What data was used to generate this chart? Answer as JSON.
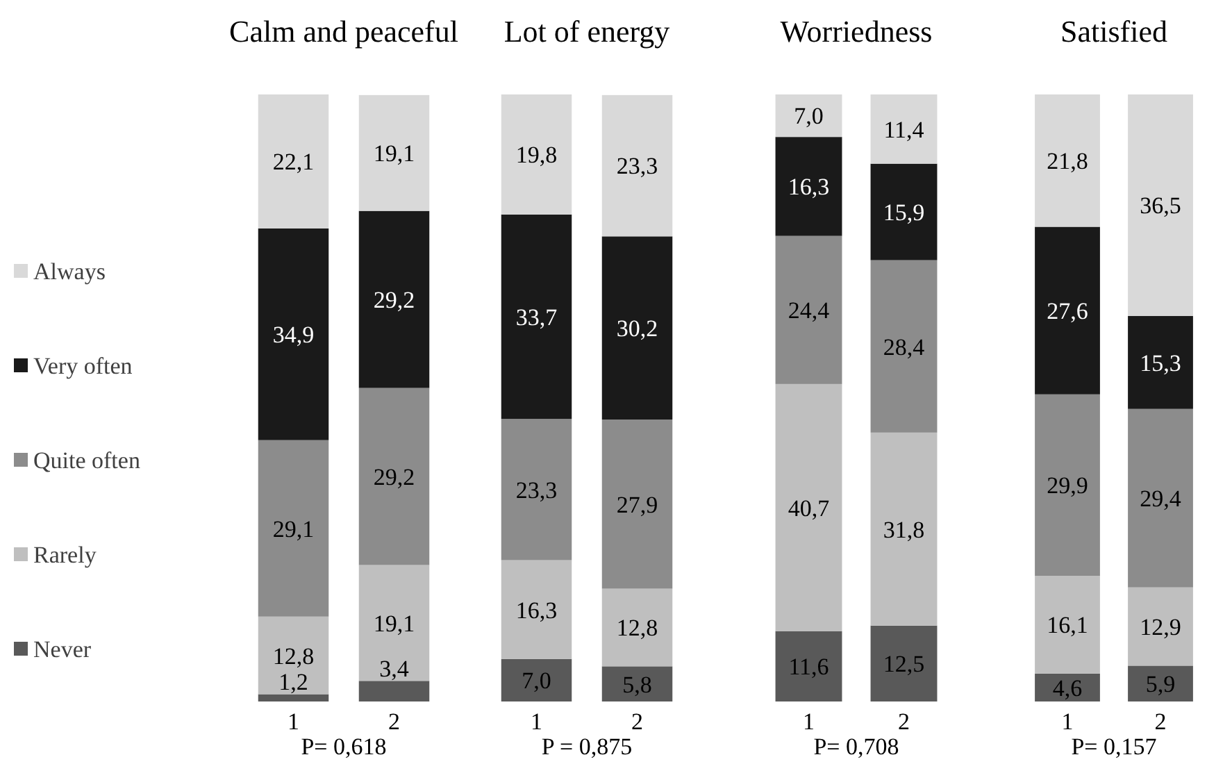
{
  "chart_data": [
    {
      "type": "bar",
      "stacked": true,
      "title": "Calm and peaceful",
      "categories": [
        "1",
        "2"
      ],
      "legend": "left",
      "annotations": [
        "P=  0,618"
      ],
      "series": [
        {
          "name": "Never",
          "color": "#595959",
          "values": [
            1.2,
            3.4
          ],
          "value_labels": [
            "1,2",
            "3,4"
          ]
        },
        {
          "name": "Rarely",
          "color": "#bfbfbf",
          "values": [
            12.8,
            19.1
          ],
          "value_labels": [
            "12,8",
            "19,1"
          ]
        },
        {
          "name": "Quite often",
          "color": "#8c8c8c",
          "values": [
            29.1,
            29.2
          ],
          "value_labels": [
            "29,1",
            "29,2"
          ]
        },
        {
          "name": "Very often",
          "color": "#1a1a1a",
          "values": [
            34.9,
            29.2
          ],
          "value_labels": [
            "34,9",
            "29,2"
          ]
        },
        {
          "name": "Always",
          "color": "#d9d9d9",
          "values": [
            22.1,
            19.1
          ],
          "value_labels": [
            "22,1",
            "19,1"
          ]
        }
      ]
    },
    {
      "type": "bar",
      "stacked": true,
      "title": "Lot of energy",
      "categories": [
        "1",
        "2"
      ],
      "annotations": [
        "P = 0,875"
      ],
      "series": [
        {
          "color": "#595959",
          "values": [
            7.0,
            5.8
          ],
          "value_labels": [
            "7,0",
            "5,8"
          ]
        },
        {
          "color": "#bfbfbf",
          "values": [
            16.3,
            12.8
          ],
          "value_labels": [
            "16,3",
            "12,8"
          ]
        },
        {
          "color": "#8c8c8c",
          "values": [
            23.3,
            27.9
          ],
          "value_labels": [
            "23,3",
            "27,9"
          ]
        },
        {
          "color": "#1a1a1a",
          "values": [
            33.7,
            30.2
          ],
          "value_labels": [
            "33,7",
            "30,2"
          ]
        },
        {
          "color": "#d9d9d9",
          "values": [
            19.8,
            23.3
          ],
          "value_labels": [
            "19,8",
            "23,3"
          ]
        }
      ]
    },
    {
      "type": "bar",
      "stacked": true,
      "title": "Worriedness",
      "categories": [
        "1",
        "2"
      ],
      "annotations": [
        "P= 0,708"
      ],
      "series": [
        {
          "color": "#595959",
          "values": [
            11.6,
            12.5
          ],
          "value_labels": [
            "11,6",
            "12,5"
          ]
        },
        {
          "color": "#bfbfbf",
          "values": [
            40.7,
            31.8
          ],
          "value_labels": [
            "40,7",
            "31,8"
          ]
        },
        {
          "color": "#8c8c8c",
          "values": [
            24.4,
            28.4
          ],
          "value_labels": [
            "24,4",
            "28,4"
          ]
        },
        {
          "color": "#1a1a1a",
          "values": [
            16.3,
            15.9
          ],
          "value_labels": [
            "16,3",
            "15,9"
          ]
        },
        {
          "color": "#d9d9d9",
          "values": [
            7.0,
            11.4
          ],
          "value_labels": [
            "7,0",
            "11,4"
          ]
        }
      ]
    },
    {
      "type": "bar",
      "stacked": true,
      "title": "Satisfied",
      "categories": [
        "1",
        "2"
      ],
      "annotations": [
        "P=  0,157"
      ],
      "series": [
        {
          "color": "#595959",
          "values": [
            4.6,
            5.9
          ],
          "value_labels": [
            "4,6",
            "5,9"
          ]
        },
        {
          "color": "#bfbfbf",
          "values": [
            16.1,
            12.9
          ],
          "value_labels": [
            "16,1",
            "12,9"
          ]
        },
        {
          "color": "#8c8c8c",
          "values": [
            29.9,
            29.4
          ],
          "value_labels": [
            "29,9",
            "29,4"
          ]
        },
        {
          "color": "#1a1a1a",
          "values": [
            27.6,
            15.3
          ],
          "value_labels": [
            "27,6",
            "15,3"
          ]
        },
        {
          "color": "#d9d9d9",
          "values": [
            21.8,
            36.5
          ],
          "value_labels": [
            "21,8",
            "36,5"
          ]
        }
      ]
    }
  ]
}
